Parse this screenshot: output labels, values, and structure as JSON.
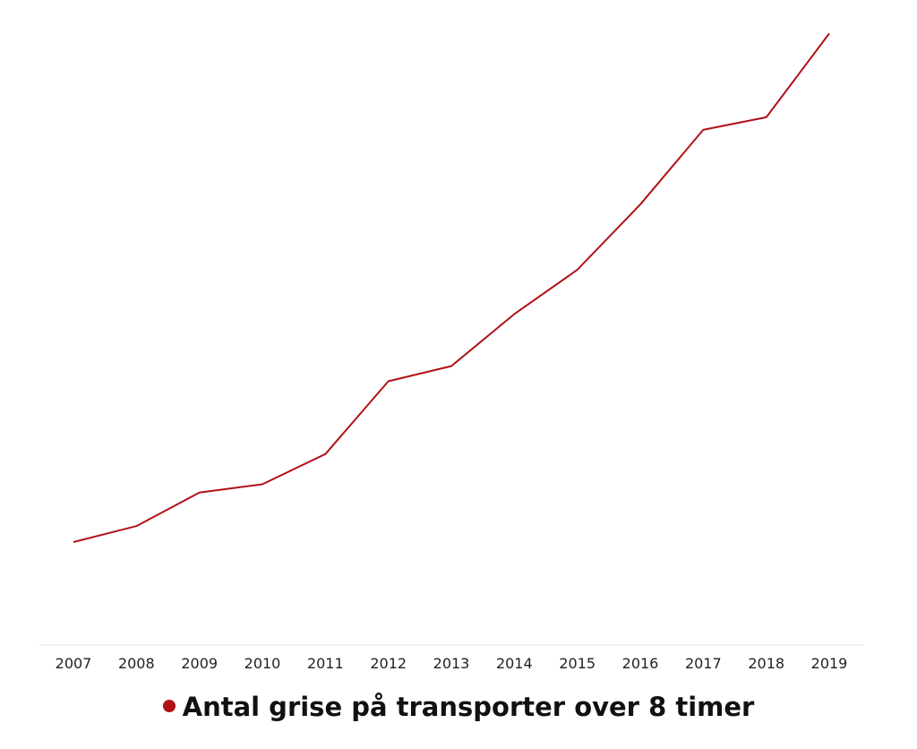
{
  "chart_data": {
    "type": "line",
    "x": [
      "2007",
      "2008",
      "2009",
      "2010",
      "2011",
      "2012",
      "2013",
      "2014",
      "2015",
      "2016",
      "2017",
      "2018",
      "2019"
    ],
    "series": [
      {
        "name": "Antal grise på transporter over 8 timer",
        "color": "#b01116",
        "values": [
          123,
          142,
          182,
          192,
          228,
          315,
          333,
          395,
          448,
          526,
          615,
          630,
          730
        ]
      }
    ],
    "ylim": [
      0,
      770
    ],
    "grid": false,
    "legend_position": "bottom-center"
  }
}
